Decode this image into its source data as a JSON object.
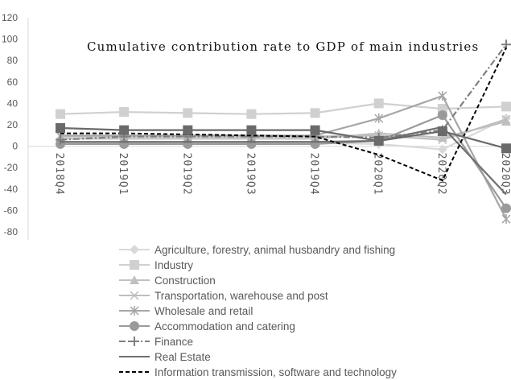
{
  "chart_data": {
    "type": "line",
    "title": "Cumulative contribution rate to GDP of main industries",
    "xlabel": "",
    "ylabel": "",
    "categories": [
      "2018Q4",
      "2019Q1",
      "2019Q2",
      "2019Q3",
      "2019Q4",
      "2020Q1",
      "2020Q2",
      "2020Q3"
    ],
    "ylim": [
      -80,
      120
    ],
    "yticks": [
      -80,
      -60,
      -40,
      -20,
      0,
      20,
      40,
      60,
      80,
      100,
      120
    ],
    "grid": false,
    "legend": "bottom",
    "series": [
      {
        "name": "Agriculture, forestry, animal husbandry and fishing",
        "marker": "diamond",
        "color": "#d9d9d9",
        "dash": "",
        "values": [
          3,
          3,
          3,
          3,
          3,
          2,
          -3,
          26
        ]
      },
      {
        "name": "Industry",
        "marker": "square",
        "color": "#d0d0d0",
        "dash": "",
        "values": [
          30,
          32,
          31,
          30,
          31,
          40,
          35,
          37
        ]
      },
      {
        "name": "Construction",
        "marker": "triangle",
        "color": "#c0c0c0",
        "dash": "",
        "values": [
          7,
          7,
          7,
          7,
          7,
          12,
          8,
          23
        ]
      },
      {
        "name": "Transportation, warehouse and post",
        "marker": "x",
        "color": "#bdbdbd",
        "dash": "",
        "values": [
          9,
          9,
          9,
          9,
          9,
          10,
          6,
          25
        ]
      },
      {
        "name": "Wholesale and retail",
        "marker": "star",
        "color": "#a6a6a6",
        "dash": "",
        "values": [
          10,
          10,
          10,
          10,
          10,
          26,
          47,
          -68
        ]
      },
      {
        "name": "Accommodation and catering",
        "marker": "circle",
        "color": "#9a9a9a",
        "dash": "",
        "values": [
          2,
          2,
          2,
          2,
          2,
          5,
          29,
          -58
        ]
      },
      {
        "name": "Finance",
        "marker": "plus",
        "color": "#7f7f7f",
        "dash": "8,3,2,3",
        "values": [
          6,
          9,
          9,
          9,
          9,
          8,
          15,
          95
        ]
      },
      {
        "name": "Real Estate",
        "marker": "none",
        "color": "#6f6f6f",
        "dash": "",
        "values": [
          4,
          4,
          4,
          4,
          4,
          5,
          18,
          -45
        ]
      },
      {
        "name": "Information transmission, software and technology",
        "marker": "none",
        "color": "#000000",
        "dash": "5,3",
        "values": [
          12,
          12,
          11,
          10,
          9,
          -8,
          -32,
          92
        ]
      },
      {
        "name": "",
        "marker": "square",
        "color": "#6a6a6a",
        "dash": "",
        "values": [
          17,
          15,
          15,
          15,
          15,
          5,
          14,
          -2
        ]
      }
    ]
  }
}
